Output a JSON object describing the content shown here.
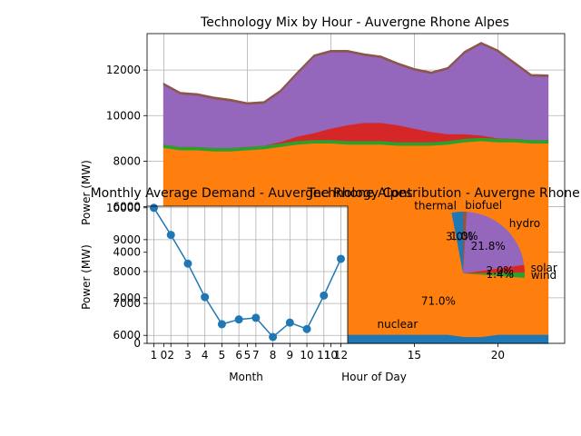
{
  "chart_data": [
    {
      "type": "area",
      "stacked": true,
      "title": "Technology Mix by Hour - Auvergne Rhone Alpes",
      "xlabel": "Hour of Day",
      "ylabel": "Power (MW)",
      "xlim": [
        -1,
        24
      ],
      "ylim": [
        0,
        13600
      ],
      "xticks": [
        0,
        5,
        10,
        15,
        20
      ],
      "yticks": [
        0,
        2000,
        4000,
        6000,
        8000,
        10000,
        12000
      ],
      "grid": true,
      "x": [
        0,
        1,
        2,
        3,
        4,
        5,
        6,
        7,
        8,
        9,
        10,
        11,
        12,
        13,
        14,
        15,
        16,
        17,
        18,
        19,
        20,
        21,
        22,
        23
      ],
      "series": [
        {
          "name": "thermal",
          "color": "#1f77b4",
          "values": [
            400,
            400,
            400,
            400,
            400,
            400,
            400,
            400,
            400,
            400,
            400,
            400,
            400,
            400,
            400,
            400,
            400,
            400,
            300,
            300,
            400,
            400,
            400,
            400
          ]
        },
        {
          "name": "nuclear",
          "color": "#ff7f0e",
          "values": [
            8200,
            8100,
            8100,
            8050,
            8050,
            8100,
            8150,
            8250,
            8350,
            8400,
            8400,
            8350,
            8350,
            8350,
            8300,
            8300,
            8300,
            8350,
            8550,
            8600,
            8450,
            8450,
            8400,
            8400
          ]
        },
        {
          "name": "wind",
          "color": "#2ca02c",
          "values": [
            150,
            150,
            150,
            150,
            150,
            150,
            150,
            150,
            150,
            150,
            150,
            150,
            150,
            150,
            150,
            150,
            150,
            150,
            150,
            150,
            150,
            150,
            150,
            150
          ]
        },
        {
          "name": "solar",
          "color": "#d62728",
          "values": [
            0,
            0,
            0,
            0,
            0,
            0,
            0,
            60,
            200,
            300,
            500,
            700,
            800,
            800,
            750,
            600,
            450,
            300,
            200,
            100,
            20,
            0,
            0,
            0
          ]
        },
        {
          "name": "hydro",
          "color": "#9467bd",
          "values": [
            2600,
            2300,
            2250,
            2150,
            2050,
            1850,
            1850,
            2200,
            2750,
            3350,
            3350,
            3200,
            2950,
            2850,
            2650,
            2550,
            2550,
            2850,
            3550,
            4000,
            3800,
            3280,
            2790,
            2770
          ]
        },
        {
          "name": "biofuel",
          "color": "#8c564b",
          "values": [
            60,
            60,
            60,
            60,
            60,
            60,
            60,
            60,
            60,
            60,
            60,
            60,
            60,
            60,
            60,
            60,
            60,
            60,
            60,
            60,
            60,
            60,
            60,
            60
          ]
        }
      ],
      "annotations": [
        {
          "text": "nuclear",
          "x": 9.5,
          "y": 700
        }
      ]
    },
    {
      "type": "line",
      "title": "Monthly Average Demand - Auvergne Rhone Alpes",
      "xlabel": "Month",
      "ylabel": "Power (MW)",
      "xlim": [
        0.6,
        12.4
      ],
      "ylim": [
        5750,
        10050
      ],
      "yticks": [
        6000,
        7000,
        8000,
        9000,
        10000
      ],
      "grid": true,
      "color": "#1f77b4",
      "x": [
        1,
        2,
        3,
        4,
        5,
        6,
        7,
        8,
        9,
        10,
        11,
        12
      ],
      "values": [
        10000,
        9150,
        8250,
        7200,
        6350,
        6500,
        6550,
        5950,
        6400,
        6200,
        7250,
        8400
      ]
    },
    {
      "type": "pie",
      "title": "Technology Contribution - Auvergne Rhone Alpes",
      "labels": [
        "thermal",
        "nuclear",
        "wind",
        "solar",
        "hydro",
        "biofuel"
      ],
      "values": [
        3.0,
        71.0,
        1.4,
        2.0,
        21.8,
        1.0
      ],
      "pct_labels": [
        "3.0%",
        "71.0%",
        "1.4%",
        "2.0%",
        "21.8%",
        "1.0%"
      ],
      "colors": [
        "#1f77b4",
        "#ff7f0e",
        "#2ca02c",
        "#d62728",
        "#9467bd",
        "#8c564b"
      ]
    }
  ]
}
